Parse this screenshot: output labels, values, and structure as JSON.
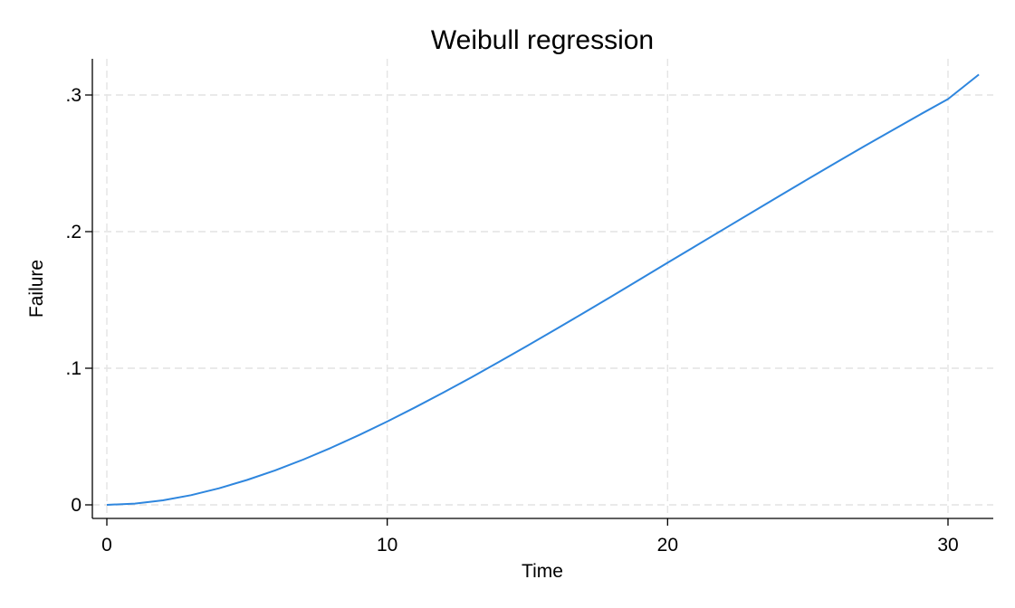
{
  "chart_data": {
    "type": "line",
    "title": "Weibull regression",
    "xlabel": "Time",
    "ylabel": "Failure",
    "xlim": [
      0,
      31.2
    ],
    "ylim": [
      0,
      0.32
    ],
    "xticks": [
      {
        "value": 0,
        "label": "0"
      },
      {
        "value": 10,
        "label": "10"
      },
      {
        "value": 20,
        "label": "20"
      },
      {
        "value": 30,
        "label": "30"
      }
    ],
    "yticks": [
      {
        "value": 0,
        "label": "0"
      },
      {
        "value": 0.1,
        "label": ".1"
      },
      {
        "value": 0.2,
        "label": ".2"
      },
      {
        "value": 0.3,
        "label": ".3"
      }
    ],
    "grid": true,
    "legend": "none",
    "line_color": "#2e86de",
    "series": [
      {
        "x": [
          0,
          1,
          2,
          3,
          4,
          5,
          6,
          7,
          8,
          9,
          10,
          11,
          12,
          13,
          14,
          15,
          16,
          17,
          18,
          19,
          20,
          21,
          22,
          23,
          24,
          25,
          26,
          27,
          28,
          29,
          30,
          31.1
        ],
        "y": [
          0,
          0.0009,
          0.0033,
          0.0071,
          0.0121,
          0.0182,
          0.0252,
          0.0331,
          0.0418,
          0.0511,
          0.061,
          0.0714,
          0.0822,
          0.0933,
          0.1048,
          0.1165,
          0.1284,
          0.1404,
          0.1526,
          0.1649,
          0.1772,
          0.1895,
          0.2018,
          0.214,
          0.2262,
          0.2384,
          0.2504,
          0.2623,
          0.274,
          0.2856,
          0.297,
          0.315
        ]
      }
    ]
  }
}
